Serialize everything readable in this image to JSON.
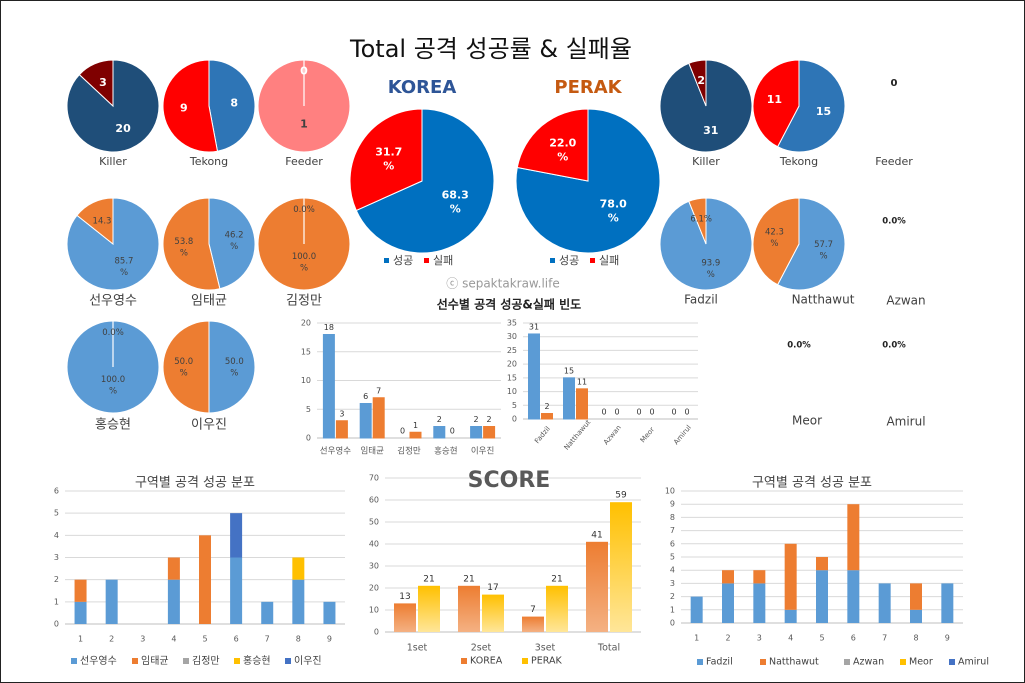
{
  "title": "Total 공격 성공률 & 실패율",
  "watermark": "ⓒ sepaktakraw.life",
  "colors": {
    "dark_navy": "#1f4e79",
    "dark_red": "#7f0000",
    "red": "#ff0000",
    "blue": "#2e75b6",
    "pink": "#ff8080",
    "orange": "#ed7d31",
    "light_blue": "#5b9bd5",
    "korea_blue": "#0070c0",
    "gold": "#ffc000",
    "gray": "#a5a5a5",
    "royal": "#4472c4",
    "korea_title": "#2e5597",
    "perak_title": "#c55a11"
  },
  "chart_data": [
    {
      "id": "korea-killer",
      "type": "pie",
      "label": "Killer",
      "values": [
        20,
        3
      ],
      "value_labels": [
        "20",
        "3"
      ],
      "color_keys": [
        "dark_navy",
        "dark_red"
      ]
    },
    {
      "id": "korea-tekong",
      "type": "pie",
      "label": "Tekong",
      "values": [
        8,
        9
      ],
      "value_labels": [
        "8",
        "9"
      ],
      "color_keys": [
        "blue",
        "red"
      ]
    },
    {
      "id": "korea-feeder",
      "type": "pie",
      "label": "Feeder",
      "values": [
        1,
        0
      ],
      "value_labels": [
        "1",
        "0"
      ],
      "color_keys": [
        "pink",
        "blue"
      ]
    },
    {
      "id": "korea-total",
      "type": "pie",
      "title": "KOREA",
      "values": [
        68.3,
        31.7
      ],
      "value_labels": [
        "68.3 %",
        "31.7 %"
      ],
      "color_keys": [
        "korea_blue",
        "red"
      ],
      "legend": [
        "성공",
        "실패"
      ]
    },
    {
      "id": "perak-total",
      "type": "pie",
      "title": "PERAK",
      "values": [
        78.0,
        22.0
      ],
      "value_labels": [
        "78.0 %",
        "22.0 %"
      ],
      "color_keys": [
        "korea_blue",
        "red"
      ],
      "legend": [
        "성공",
        "실패"
      ]
    },
    {
      "id": "perak-killer",
      "type": "pie",
      "label": "Killer",
      "values": [
        31,
        2
      ],
      "value_labels": [
        "31",
        "2"
      ],
      "color_keys": [
        "dark_navy",
        "dark_red"
      ]
    },
    {
      "id": "perak-tekong",
      "type": "pie",
      "label": "Tekong",
      "values": [
        15,
        11
      ],
      "value_labels": [
        "15",
        "11"
      ],
      "color_keys": [
        "blue",
        "red"
      ]
    },
    {
      "id": "perak-feeder",
      "type": "pie",
      "label": "Feeder",
      "values": [],
      "value_labels": [
        "0"
      ],
      "color_keys": []
    },
    {
      "id": "korea-p1",
      "type": "pie",
      "label": "선우영수",
      "values": [
        85.7,
        14.3
      ],
      "value_labels": [
        "85.7 %",
        "14.3"
      ],
      "color_keys": [
        "light_blue",
        "orange"
      ]
    },
    {
      "id": "korea-p2",
      "type": "pie",
      "label": "임태균",
      "values": [
        46.2,
        53.8
      ],
      "value_labels": [
        "46.2 %",
        "53.8 %"
      ],
      "color_keys": [
        "light_blue",
        "orange"
      ]
    },
    {
      "id": "korea-p3",
      "type": "pie",
      "label": "김정만",
      "values": [
        0,
        100
      ],
      "value_labels": [
        "0.0%",
        "100.0 %"
      ],
      "color_keys": [
        "light_blue",
        "orange"
      ]
    },
    {
      "id": "korea-p4",
      "type": "pie",
      "label": "홍승현",
      "values": [
        100,
        0
      ],
      "value_labels": [
        "100.0 %",
        "0.0%"
      ],
      "color_keys": [
        "light_blue",
        "orange"
      ]
    },
    {
      "id": "korea-p5",
      "type": "pie",
      "label": "이우진",
      "values": [
        50,
        50
      ],
      "value_labels": [
        "50.0 %",
        "50.0 %"
      ],
      "color_keys": [
        "light_blue",
        "orange"
      ]
    },
    {
      "id": "perak-p1",
      "type": "pie",
      "label": "Fadzil",
      "values": [
        93.9,
        6.1
      ],
      "value_labels": [
        "93.9 %",
        "6.1%"
      ],
      "color_keys": [
        "light_blue",
        "orange"
      ]
    },
    {
      "id": "perak-p2",
      "type": "pie",
      "label": "Natthawut",
      "values": [
        57.7,
        42.3
      ],
      "value_labels": [
        "57.7 %",
        "42.3 %"
      ],
      "color_keys": [
        "light_blue",
        "orange"
      ]
    },
    {
      "id": "perak-p3",
      "type": "pie",
      "label": "Azwan",
      "values": [],
      "value_labels": [
        "0.0%"
      ],
      "color_keys": []
    },
    {
      "id": "perak-p4",
      "type": "pie",
      "label": "Meor",
      "values": [],
      "value_labels": [
        "0.0%"
      ],
      "color_keys": []
    },
    {
      "id": "perak-p5",
      "type": "pie",
      "label": "Amirul",
      "values": [],
      "value_labels": [
        "0.0%"
      ],
      "color_keys": []
    },
    {
      "id": "freq-korea",
      "type": "bar",
      "title": "선수별 공격 성공&실패 빈도",
      "categories": [
        "선우영수",
        "임태균",
        "김정만",
        "홍승현",
        "이우진"
      ],
      "series": [
        {
          "values": [
            18,
            6,
            0,
            2,
            2
          ],
          "color_key": "light_blue"
        },
        {
          "values": [
            3,
            7,
            1,
            0,
            2
          ],
          "color_key": "orange"
        }
      ],
      "ylim": [
        0,
        20
      ],
      "yticks": [
        0,
        5,
        10,
        15,
        20
      ]
    },
    {
      "id": "freq-perak",
      "type": "bar",
      "categories": [
        "Fadzil",
        "Natthawut",
        "Azwan",
        "Meor",
        "Amirul"
      ],
      "series": [
        {
          "values": [
            31,
            15,
            0,
            0,
            0
          ],
          "color_key": "light_blue"
        },
        {
          "values": [
            2,
            11,
            0,
            0,
            0
          ],
          "color_key": "orange"
        }
      ],
      "ylim": [
        0,
        35
      ],
      "yticks": [
        0,
        5,
        10,
        15,
        20,
        25,
        30,
        35
      ]
    },
    {
      "id": "zone-korea",
      "type": "bar",
      "stacked": true,
      "title": "구역별 공격 성공 분포",
      "categories": [
        "1",
        "2",
        "3",
        "4",
        "5",
        "6",
        "7",
        "8",
        "9"
      ],
      "series": [
        {
          "name": "선우영수",
          "values": [
            1,
            2,
            0,
            2,
            0,
            3,
            1,
            2,
            1
          ],
          "color_key": "light_blue"
        },
        {
          "name": "임태균",
          "values": [
            1,
            0,
            0,
            1,
            4,
            0,
            0,
            0,
            0
          ],
          "color_key": "orange"
        },
        {
          "name": "김정만",
          "values": [
            0,
            0,
            0,
            0,
            0,
            0,
            0,
            0,
            0
          ],
          "color_key": "gray"
        },
        {
          "name": "홍승현",
          "values": [
            0,
            0,
            0,
            0,
            0,
            0,
            0,
            1,
            0
          ],
          "color_key": "gold"
        },
        {
          "name": "이우진",
          "values": [
            0,
            0,
            0,
            0,
            0,
            2,
            0,
            0,
            0
          ],
          "color_key": "royal"
        }
      ],
      "ylim": [
        0,
        6
      ],
      "yticks": [
        0,
        1,
        2,
        3,
        4,
        5,
        6
      ]
    },
    {
      "id": "score",
      "type": "bar",
      "title": "SCORE",
      "categories": [
        "1set",
        "2set",
        "3set",
        "Total"
      ],
      "series": [
        {
          "name": "KOREA",
          "values": [
            13,
            21,
            7,
            41
          ],
          "color_key": "orange"
        },
        {
          "name": "PERAK",
          "values": [
            21,
            17,
            21,
            59
          ],
          "color_key": "gold"
        }
      ],
      "ylim": [
        0,
        70
      ],
      "yticks": [
        0,
        10,
        20,
        30,
        40,
        50,
        60,
        70
      ]
    },
    {
      "id": "zone-perak",
      "type": "bar",
      "stacked": true,
      "title": "구역별 공격 성공 분포",
      "categories": [
        "1",
        "2",
        "3",
        "4",
        "5",
        "6",
        "7",
        "8",
        "9"
      ],
      "series": [
        {
          "name": "Fadzil",
          "values": [
            2,
            3,
            3,
            1,
            4,
            4,
            3,
            1,
            3
          ],
          "color_key": "light_blue"
        },
        {
          "name": "Natthawut",
          "values": [
            0,
            1,
            1,
            5,
            1,
            5,
            0,
            2,
            0
          ],
          "color_key": "orange"
        },
        {
          "name": "Azwan",
          "values": [
            0,
            0,
            0,
            0,
            0,
            0,
            0,
            0,
            0
          ],
          "color_key": "gray"
        },
        {
          "name": "Meor",
          "values": [
            0,
            0,
            0,
            0,
            0,
            0,
            0,
            0,
            0
          ],
          "color_key": "gold"
        },
        {
          "name": "Amirul",
          "values": [
            0,
            0,
            0,
            0,
            0,
            0,
            0,
            0,
            0
          ],
          "color_key": "royal"
        }
      ],
      "ylim": [
        0,
        10
      ],
      "yticks": [
        0,
        1,
        2,
        3,
        4,
        5,
        6,
        7,
        8,
        9,
        10
      ]
    }
  ]
}
